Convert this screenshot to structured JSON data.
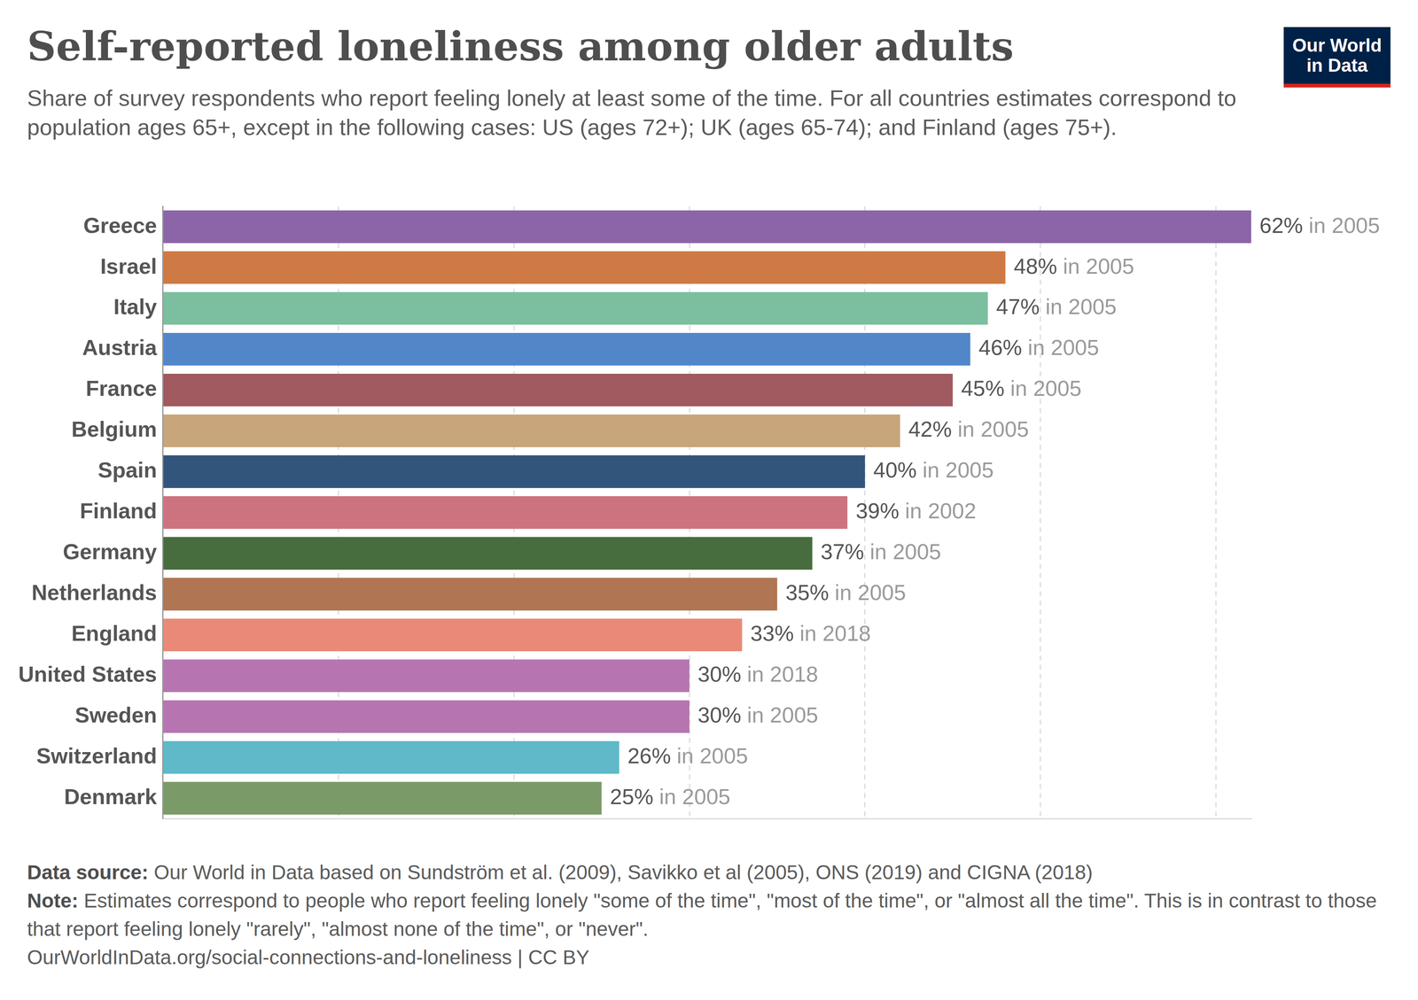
{
  "chart_data": {
    "type": "bar",
    "orientation": "horizontal",
    "title": "Self-reported loneliness among older adults",
    "subtitle": "Share of survey respondents who report feeling lonely at least some of the time. For all countries estimates correspond to population ages 65+, except in the following cases: US (ages 72+); UK (ages 65-74); and Finland (ages 75+).",
    "categories": [
      "Greece",
      "Israel",
      "Italy",
      "Austria",
      "France",
      "Belgium",
      "Spain",
      "Finland",
      "Germany",
      "Netherlands",
      "England",
      "United States",
      "Sweden",
      "Switzerland",
      "Denmark"
    ],
    "values": [
      62,
      48,
      47,
      46,
      45,
      42,
      40,
      39,
      37,
      35,
      33,
      30,
      30,
      26,
      25
    ],
    "value_labels": [
      "62%",
      "48%",
      "47%",
      "46%",
      "45%",
      "42%",
      "40%",
      "39%",
      "37%",
      "35%",
      "33%",
      "30%",
      "30%",
      "26%",
      "25%"
    ],
    "year_labels": [
      "in 2005",
      "in 2005",
      "in 2005",
      "in 2005",
      "in 2005",
      "in 2005",
      "in 2005",
      "in 2002",
      "in 2005",
      "in 2005",
      "in 2018",
      "in 2018",
      "in 2005",
      "in 2005",
      "in 2005"
    ],
    "colors": [
      "#8b65a8",
      "#cf7a44",
      "#7bbf9f",
      "#5187c9",
      "#a05a60",
      "#c8a57a",
      "#32557c",
      "#cd7380",
      "#476d3e",
      "#b07552",
      "#e98a78",
      "#b675b0",
      "#b675b0",
      "#5fb9c8",
      "#7a9b68"
    ],
    "xlim": [
      0,
      62
    ],
    "xticks": [
      0,
      10,
      20,
      30,
      40,
      50,
      60
    ],
    "grid": true,
    "data_labels": true,
    "tick_labels": "y",
    "source": {
      "label": "Data source:",
      "text": "Our World in Data based on Sundström et al. (2009), Savikko et al (2005), ONS (2019) and CIGNA (2018)"
    },
    "note": {
      "label": "Note:",
      "text": "Estimates correspond to people who report feeling lonely \"some of the time\", \"most of the time\", or \"almost all the time\". This is in contrast to those that report feeling lonely \"rarely\", \"almost none of the time\", or \"never\"."
    },
    "url": "OurWorldInData.org/social-connections-and-loneliness | CC BY",
    "logo": [
      "Our World",
      "in Data"
    ]
  }
}
